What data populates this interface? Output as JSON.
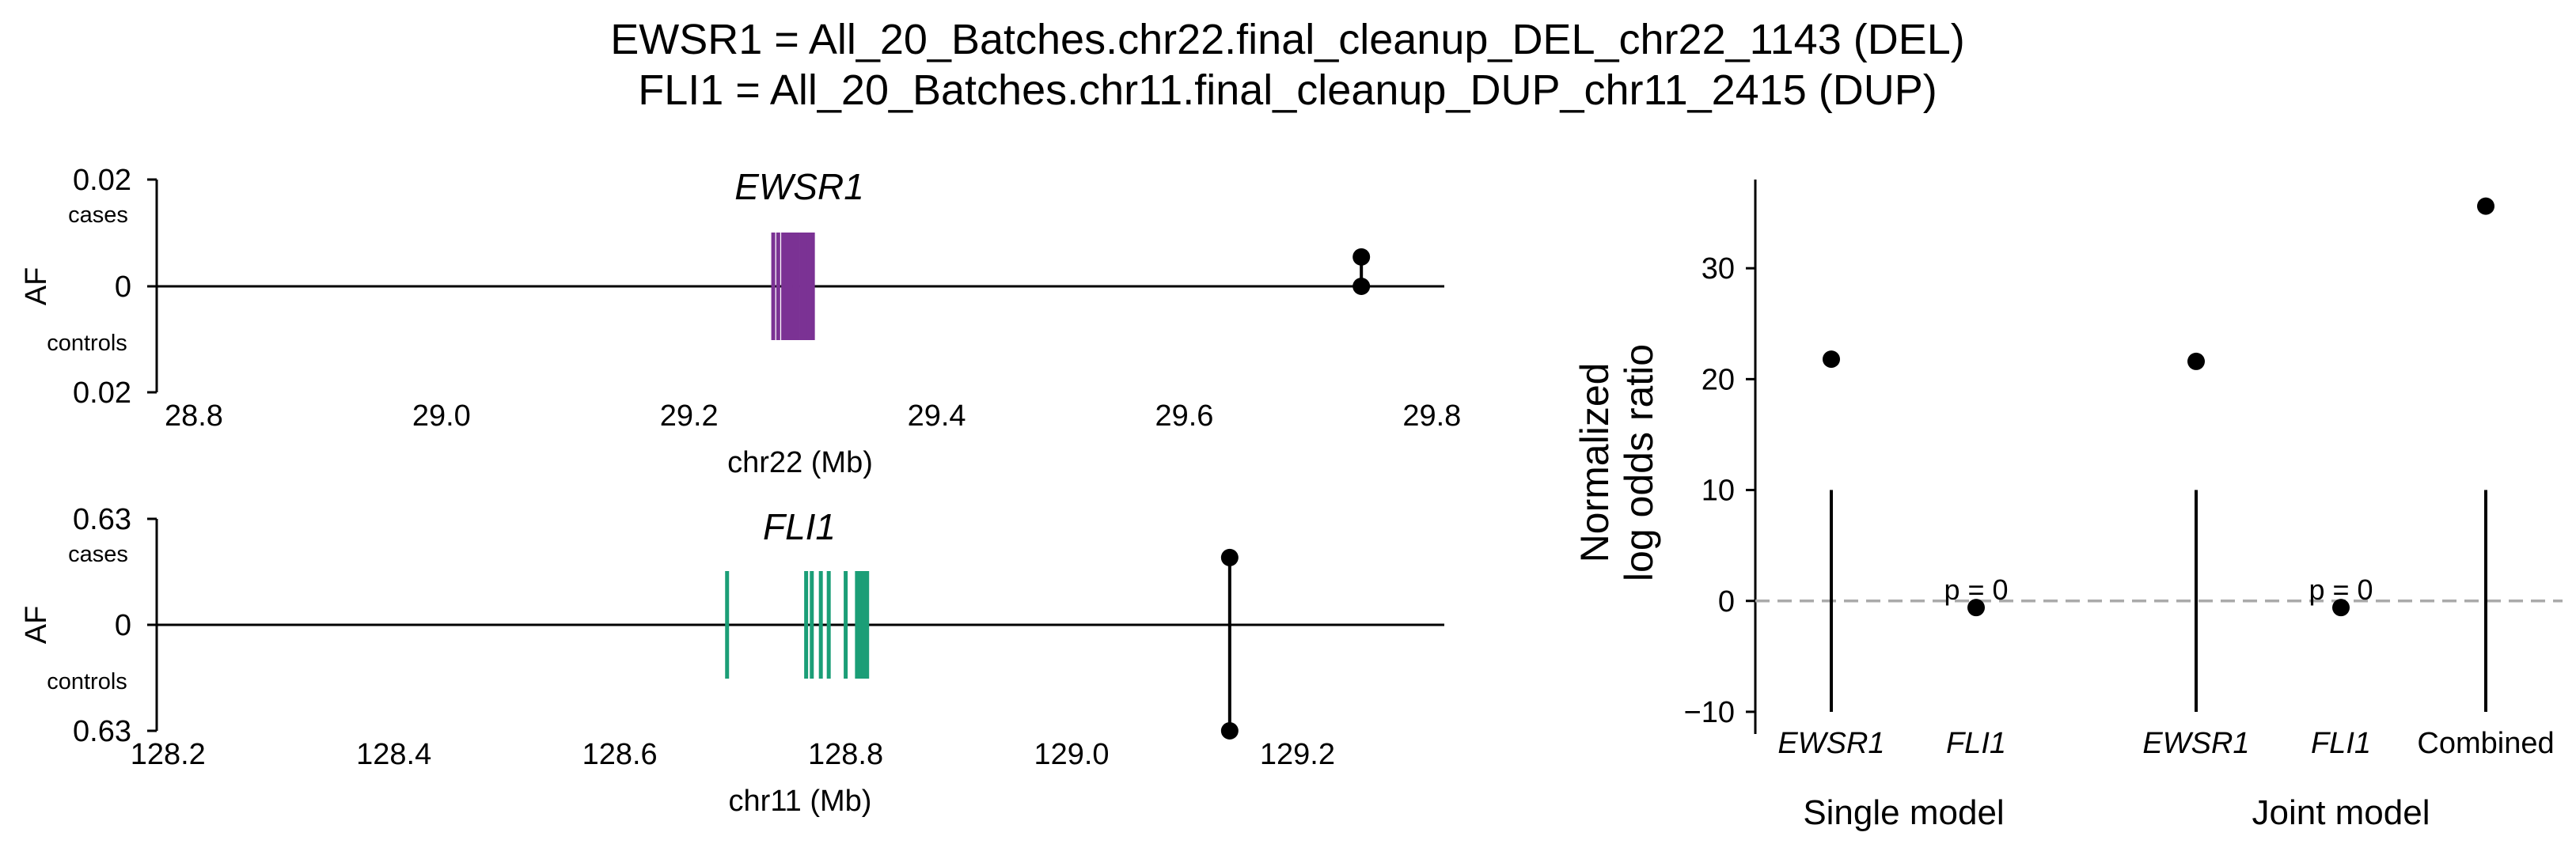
{
  "figure": {
    "title_line1": "EWSR1 = All_20_Batches.chr22.final_cleanup_DEL_chr22_1143 (DEL)",
    "title_line2": "FLI1 = All_20_Batches.chr11.final_cleanup_DUP_chr11_2415 (DUP)"
  },
  "chart_data": [
    {
      "type": "locus",
      "gene": "EWSR1",
      "gene_color": "#7b3294",
      "xlabel": "chr22 (Mb)",
      "ylabel": "AF",
      "cases_label": "cases",
      "controls_label": "controls",
      "xlim": [
        28.77,
        29.81
      ],
      "x_ticks": [
        "28.8",
        "29.0",
        "29.2",
        "29.4",
        "29.6",
        "29.8"
      ],
      "y_ticks": [
        "0.02",
        "0",
        "0.02"
      ],
      "ylim": [
        -0.02,
        0.02
      ],
      "exons_mb": [
        29.268,
        29.272,
        29.276,
        29.279,
        29.282,
        29.285,
        29.288,
        29.291,
        29.294,
        29.297,
        29.3
      ],
      "variant": {
        "x": 29.743,
        "af_cases": 0.0055,
        "af_controls": 0.0
      }
    },
    {
      "type": "locus",
      "gene": "FLI1",
      "gene_color": "#1b9e77",
      "xlabel": "chr11 (Mb)",
      "ylabel": "AF",
      "cases_label": "cases",
      "controls_label": "controls",
      "xlim": [
        128.19,
        129.33
      ],
      "x_ticks": [
        "128.2",
        "128.4",
        "128.6",
        "128.8",
        "129.0",
        "129.2"
      ],
      "y_ticks": [
        "0.63",
        "0",
        "0.63"
      ],
      "ylim": [
        -0.63,
        0.63
      ],
      "exons_mb": [
        128.695,
        128.765,
        128.77,
        128.778,
        128.785,
        128.8,
        128.81,
        128.813,
        128.816,
        128.819
      ],
      "variant": {
        "x": 129.14,
        "af_cases": 0.4,
        "af_controls": -0.63
      }
    },
    {
      "type": "scatter",
      "ylabel_line1": "Normalized",
      "ylabel_line2": "log odds ratio",
      "ylim": [
        -12,
        38
      ],
      "y_ticks": [
        "−10",
        "0",
        "10",
        "20",
        "30"
      ],
      "y_tick_values": [
        -10,
        0,
        10,
        20,
        30
      ],
      "reference_line": 0,
      "categories": [
        "EWSR1",
        "FLI1",
        "EWSR1",
        "FLI1",
        "Combined"
      ],
      "values": [
        21.8,
        -0.6,
        21.6,
        -0.6,
        35.6
      ],
      "whisker_low": [
        -10,
        null,
        -10,
        null,
        -10
      ],
      "whisker_high": [
        10,
        null,
        10,
        null,
        10
      ],
      "annotations": [
        {
          "category_index": 1,
          "text": "p = 0"
        },
        {
          "category_index": 3,
          "text": "p = 0"
        }
      ],
      "groups": [
        {
          "label": "Single model",
          "indices": [
            0,
            1
          ]
        },
        {
          "label": "Joint model",
          "indices": [
            2,
            3,
            4
          ]
        }
      ]
    }
  ]
}
